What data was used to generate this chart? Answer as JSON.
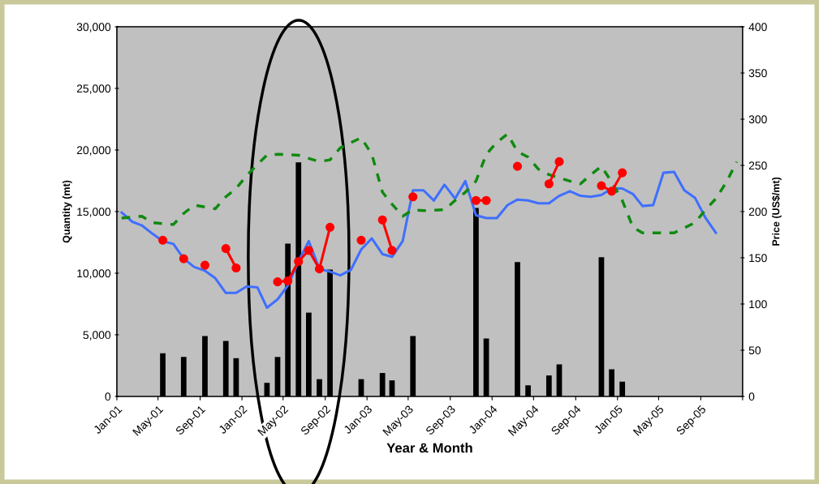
{
  "chart_data": {
    "type": "bar",
    "xlabel": "Year & Month",
    "ylabel": "Quantity (mt)",
    "y2label": "Price (US$/mt)",
    "xlim": [
      "2001-01-01",
      "2006-01-01"
    ],
    "xticks": [
      {
        "value": "2001-01-01",
        "label": "Jan-01"
      },
      {
        "value": "2001-05-01",
        "label": "May-01"
      },
      {
        "value": "2001-09-01",
        "label": "Sep-01"
      },
      {
        "value": "2002-01-01",
        "label": "Jan-02"
      },
      {
        "value": "2002-05-01",
        "label": "May-02"
      },
      {
        "value": "2002-09-01",
        "label": "Sep-02"
      },
      {
        "value": "2003-01-01",
        "label": "Jan-03"
      },
      {
        "value": "2003-05-01",
        "label": "May-03"
      },
      {
        "value": "2003-09-01",
        "label": "Sep-03"
      },
      {
        "value": "2004-01-01",
        "label": "Jan-04"
      },
      {
        "value": "2004-05-01",
        "label": "May-04"
      },
      {
        "value": "2004-09-01",
        "label": "Sep-04"
      },
      {
        "value": "2005-01-01",
        "label": "Jan-05"
      },
      {
        "value": "2005-05-01",
        "label": "May-05"
      },
      {
        "value": "2005-09-01",
        "label": "Sep-05"
      },
      {
        "value": "2006-01-01",
        "label": null
      }
    ],
    "ylim": [
      0,
      30000
    ],
    "yticks": [
      {
        "value": 0,
        "label": "0"
      },
      {
        "value": 5000,
        "label": "5,000"
      },
      {
        "value": 10000,
        "label": "10,000"
      },
      {
        "value": 15000,
        "label": "15,000"
      },
      {
        "value": 20000,
        "label": "20,000"
      },
      {
        "value": 25000,
        "label": "25,000"
      },
      {
        "value": 30000,
        "label": "30,000"
      }
    ],
    "y2lim": [
      0,
      400
    ],
    "y2ticks": [
      0,
      50,
      100,
      150,
      200,
      250,
      300,
      350,
      400
    ],
    "series": [
      {
        "color": "#000000",
        "x": [
          "2001-05-15",
          "2001-07-15",
          "2001-09-15",
          "2001-11-15",
          "2001-12-15",
          "2002-03-15",
          "2002-04-15",
          "2002-05-15",
          "2002-06-15",
          "2002-07-15",
          "2002-08-15",
          "2002-09-15",
          "2002-12-15",
          "2003-02-15",
          "2003-03-15",
          "2003-05-15",
          "2003-11-15",
          "2003-12-15",
          "2004-03-15",
          "2004-04-15",
          "2004-06-15",
          "2004-07-15",
          "2004-11-15",
          "2004-12-15",
          "2005-01-15"
        ],
        "values": [
          3500,
          3200,
          4900,
          4500,
          3100,
          1100,
          3200,
          12400,
          19000,
          6800,
          1400,
          10300,
          1400,
          1900,
          1300,
          4900,
          15300,
          4700,
          10900,
          900,
          1700,
          2600,
          11300,
          2200,
          1200
        ]
      },
      {
        "type": "line",
        "axis": "y2",
        "color": "#3f6fff",
        "line_style": "solid",
        "marker": "none",
        "x": [
          "2001-01-15",
          "2001-02-15",
          "2001-03-15",
          "2001-04-15",
          "2001-05-15",
          "2001-06-15",
          "2001-07-15",
          "2001-08-15",
          "2001-09-15",
          "2001-10-15",
          "2001-11-15",
          "2001-12-15",
          "2002-01-15",
          "2002-02-15",
          "2002-03-15",
          "2002-04-15",
          "2002-05-15",
          "2002-06-15",
          "2002-07-15",
          "2002-08-15",
          "2002-09-15",
          "2002-10-15",
          "2002-11-15",
          "2002-12-15",
          "2003-01-15",
          "2003-02-15",
          "2003-03-15",
          "2003-04-15",
          "2003-05-15",
          "2003-06-15",
          "2003-07-15",
          "2003-08-15",
          "2003-09-15",
          "2003-10-15",
          "2003-11-15",
          "2003-12-15",
          "2004-01-15",
          "2004-02-15",
          "2004-03-15",
          "2004-04-15",
          "2004-05-15",
          "2004-06-15",
          "2004-07-15",
          "2004-08-15",
          "2004-09-15",
          "2004-10-15",
          "2004-11-15",
          "2004-12-15",
          "2005-01-15",
          "2005-02-15",
          "2005-03-15",
          "2005-04-15",
          "2005-05-15",
          "2005-06-15",
          "2005-07-15",
          "2005-08-15",
          "2005-09-15",
          "2005-10-15"
        ],
        "values": [
          199,
          189,
          185,
          176,
          168,
          165,
          149,
          140,
          136,
          128,
          112,
          112,
          119,
          118,
          96,
          105,
          120,
          146,
          168,
          138,
          135,
          131,
          137,
          159,
          171,
          154,
          151,
          168,
          223,
          223,
          212,
          229,
          214,
          233,
          196,
          193,
          193,
          207,
          213,
          212,
          209,
          209,
          217,
          222,
          217,
          216,
          218,
          225,
          225,
          219,
          206,
          207,
          242,
          243,
          223,
          215,
          193,
          177
        ]
      },
      {
        "type": "line",
        "axis": "y2",
        "color": "#108a10",
        "line_style": "dashed",
        "marker": "none",
        "x": [
          "2001-01-15",
          "2001-03-15",
          "2001-04-15",
          "2001-06-15",
          "2001-07-15",
          "2001-08-15",
          "2001-10-15",
          "2001-11-15",
          "2001-12-15",
          "2002-01-15",
          "2002-02-15",
          "2002-03-15",
          "2002-04-15",
          "2002-06-15",
          "2002-08-15",
          "2002-09-15",
          "2002-10-15",
          "2002-12-15",
          "2003-01-15",
          "2003-02-15",
          "2003-03-15",
          "2003-04-15",
          "2003-05-15",
          "2003-06-15",
          "2003-08-15",
          "2003-09-15",
          "2003-10-15",
          "2003-11-15",
          "2003-12-15",
          "2004-01-15",
          "2004-02-15",
          "2004-03-15",
          "2004-04-15",
          "2004-05-15",
          "2004-06-15",
          "2004-08-15",
          "2004-09-15",
          "2004-10-15",
          "2004-11-15",
          "2004-12-15",
          "2005-01-15",
          "2005-02-15",
          "2005-03-15",
          "2005-05-15",
          "2005-06-15",
          "2005-08-15",
          "2005-09-15",
          "2005-10-15",
          "2005-11-15",
          "2005-12-15"
        ],
        "values": [
          193,
          195,
          188,
          186,
          198,
          207,
          203,
          216,
          225,
          239,
          251,
          261,
          262,
          261,
          254,
          256,
          269,
          280,
          262,
          221,
          208,
          195,
          202,
          201,
          202,
          212,
          221,
          233,
          262,
          275,
          284,
          265,
          259,
          246,
          240,
          233,
          230,
          240,
          249,
          232,
          212,
          183,
          177,
          177,
          177,
          188,
          202,
          214,
          232,
          254
        ]
      },
      {
        "type": "line",
        "axis": "y2",
        "color": "#ff0000",
        "line_style": "solid",
        "marker": "circle",
        "x": [
          "2001-05-15",
          "2001-06-15",
          "2001-07-15",
          "2001-08-15",
          "2001-09-15",
          "2001-10-15",
          "2001-11-15",
          "2001-12-15",
          "2002-01-15",
          "2002-02-15",
          "2002-03-15",
          "2002-04-15",
          "2002-05-15",
          "2002-06-15",
          "2002-07-15",
          "2002-08-15",
          "2002-09-15",
          "2002-10-15",
          "2002-11-15",
          "2002-12-15",
          "2003-01-15",
          "2003-02-15",
          "2003-03-15",
          "2003-04-15",
          "2003-05-15",
          "2003-06-15",
          "2003-07-15",
          "2003-08-15",
          "2003-09-15",
          "2003-10-15",
          "2003-11-15",
          "2003-12-15",
          "2004-01-15",
          "2004-02-15",
          "2004-03-15",
          "2004-04-15",
          "2004-05-15",
          "2004-06-15",
          "2004-07-15",
          "2004-08-15",
          "2004-09-15",
          "2004-10-15",
          "2004-11-15",
          "2004-12-15",
          "2005-01-15"
        ],
        "values": [
          169,
          null,
          149,
          null,
          142,
          null,
          160,
          139,
          null,
          null,
          null,
          124,
          125,
          146,
          158,
          138,
          183,
          null,
          null,
          169,
          null,
          191,
          158,
          null,
          216,
          null,
          null,
          null,
          null,
          null,
          212,
          212,
          null,
          null,
          249,
          null,
          null,
          230,
          254,
          null,
          null,
          null,
          228,
          222,
          242
        ]
      }
    ]
  }
}
